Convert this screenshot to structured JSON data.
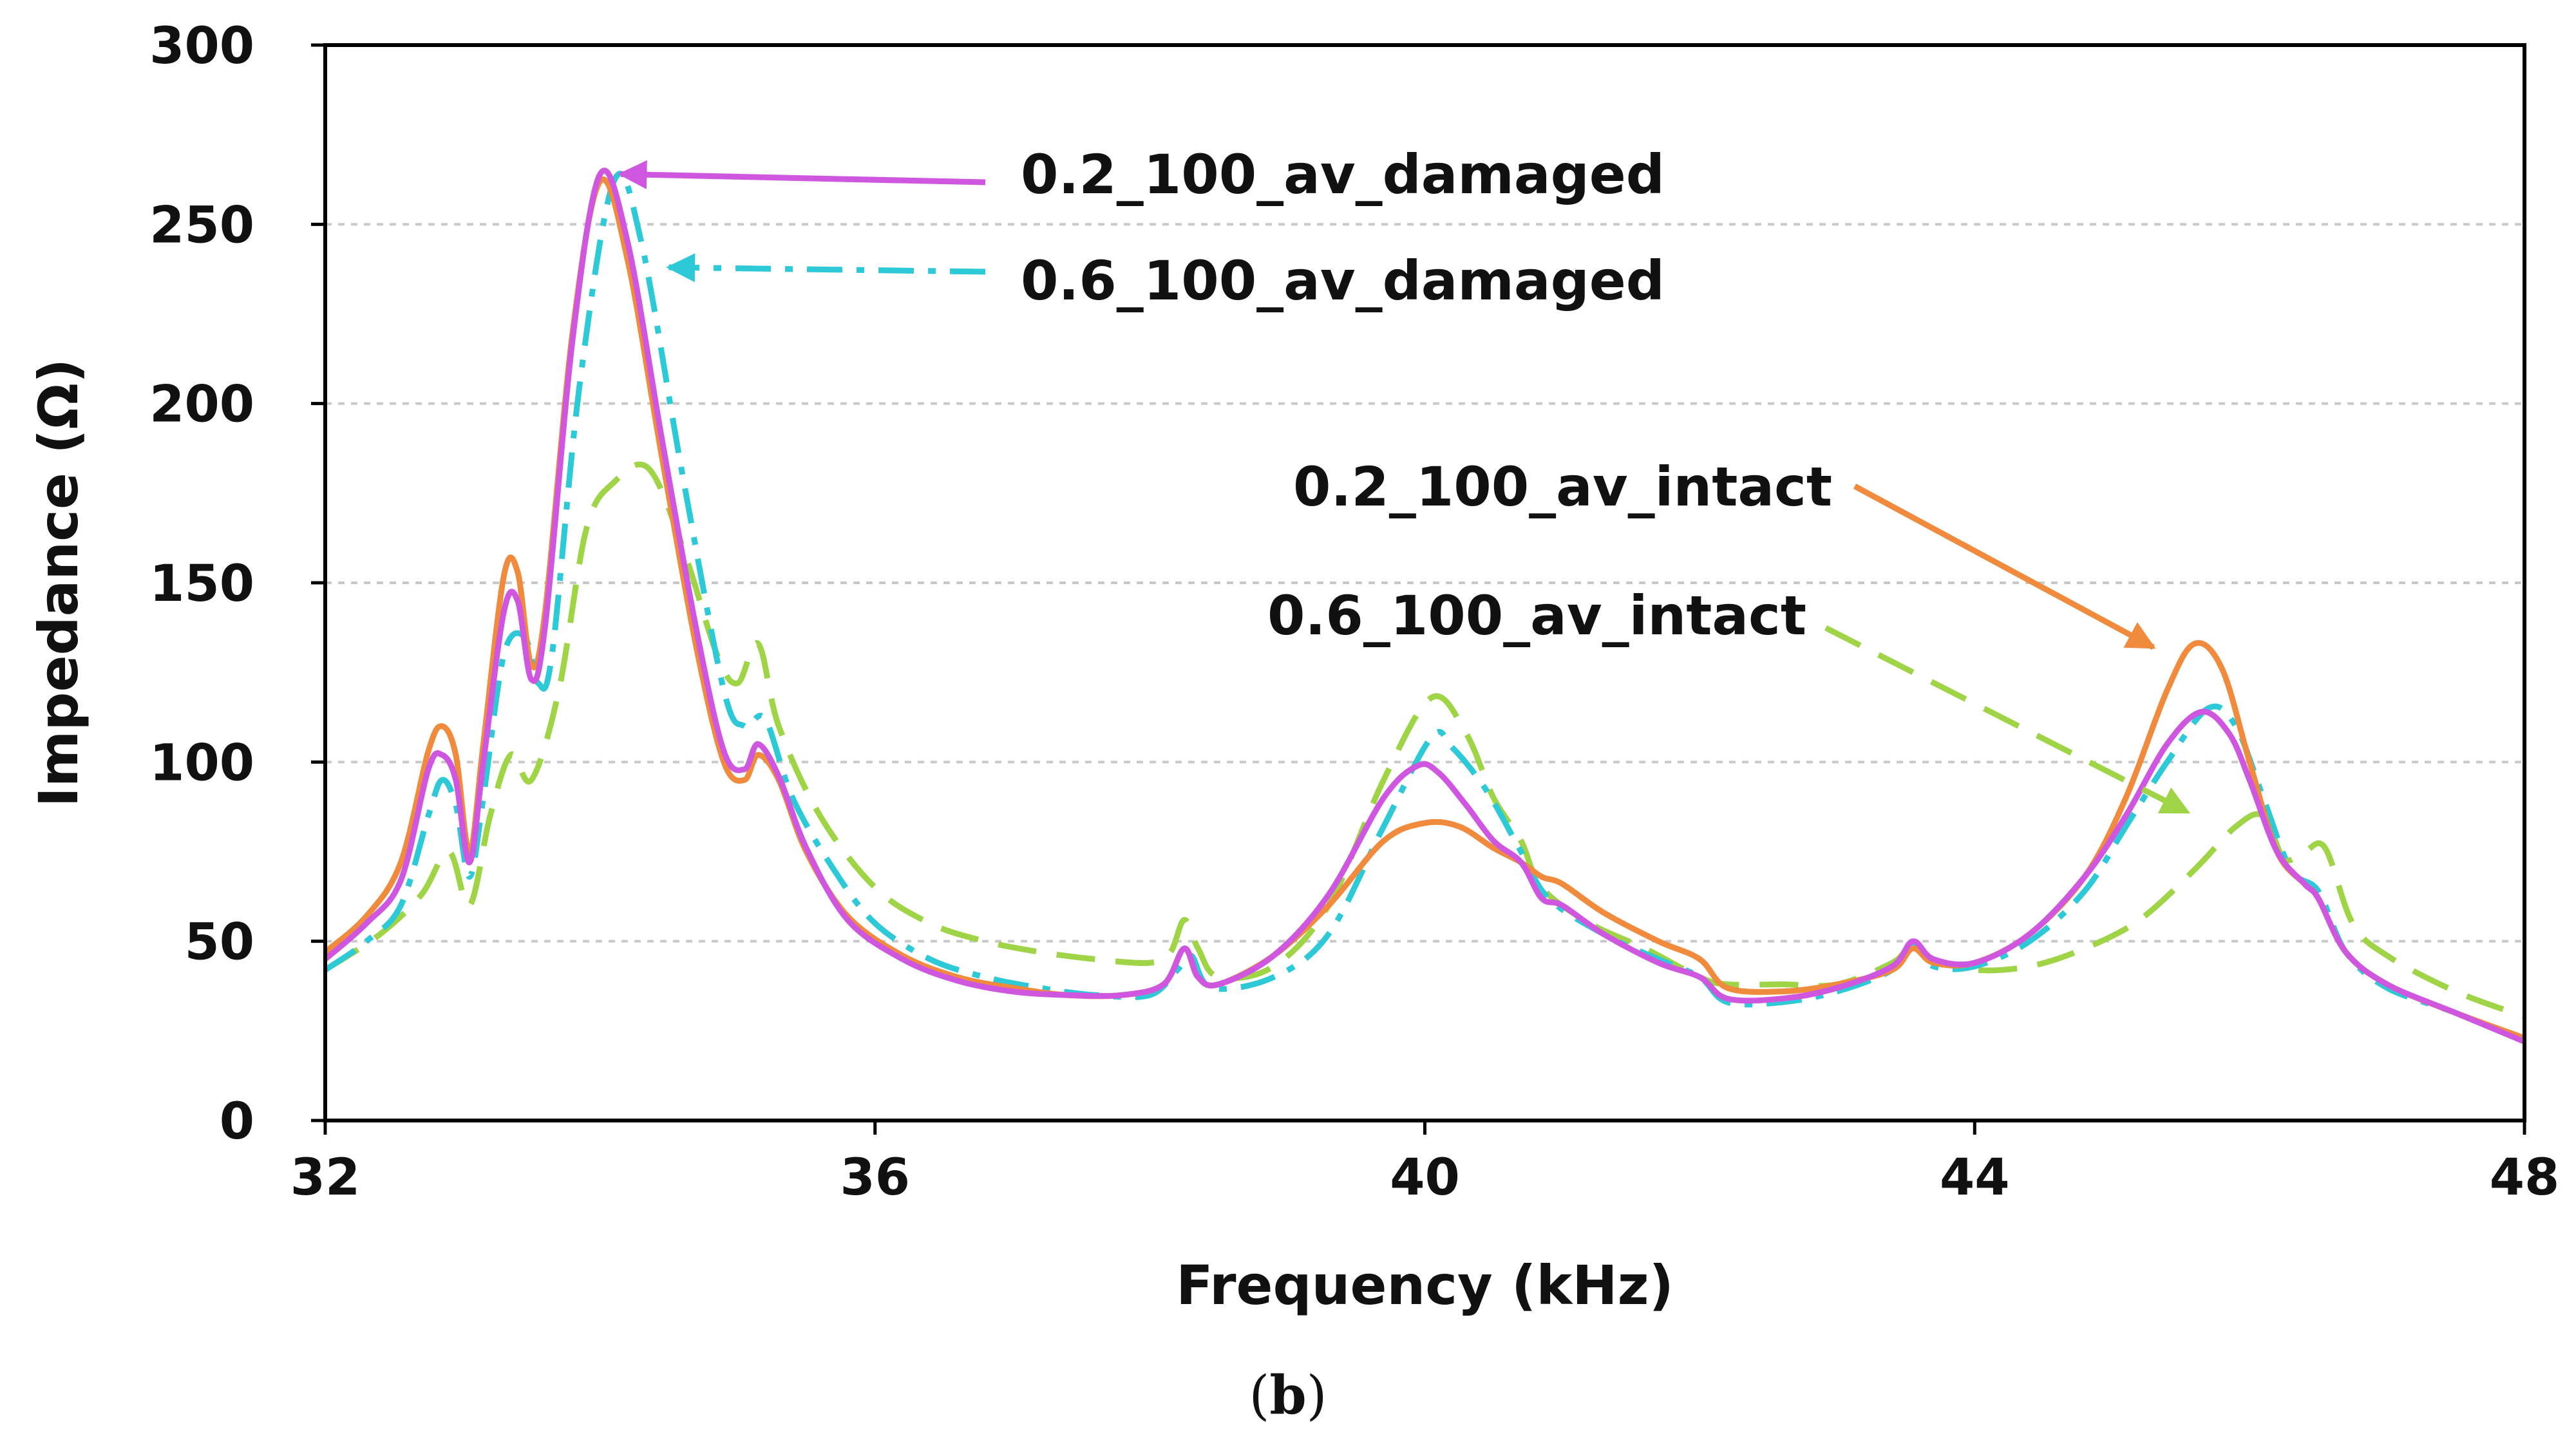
{
  "chart_data": {
    "type": "line",
    "title": "",
    "xlabel": "Frequency (kHz)",
    "ylabel": "Impedance (Ω)",
    "xlim": [
      32,
      48
    ],
    "ylim": [
      0,
      300
    ],
    "xticks": [
      32,
      36,
      40,
      44,
      48
    ],
    "yticks": [
      0,
      50,
      100,
      150,
      200,
      250,
      300
    ],
    "grid": "horizontal-dashed",
    "caption": {
      "open": "(",
      "letter": "b",
      "close": ")"
    },
    "series": [
      {
        "name": "0.2_100_av_intact",
        "color": "#F08A3C",
        "dash": "solid",
        "x": [
          32.0,
          32.3,
          32.55,
          32.75,
          32.85,
          32.95,
          33.05,
          33.15,
          33.3,
          33.4,
          33.5,
          33.6,
          33.8,
          34.0,
          34.2,
          34.45,
          34.7,
          34.9,
          35.05,
          35.15,
          35.3,
          35.5,
          35.8,
          36.2,
          36.6,
          37.0,
          37.4,
          37.8,
          38.1,
          38.25,
          38.35,
          38.5,
          38.9,
          39.3,
          39.7,
          40.0,
          40.25,
          40.5,
          40.7,
          40.85,
          41.0,
          41.3,
          41.7,
          42.0,
          42.2,
          42.6,
          43.0,
          43.4,
          43.55,
          43.7,
          44.0,
          44.4,
          44.8,
          45.1,
          45.4,
          45.6,
          45.8,
          46.0,
          46.2,
          46.4,
          46.5,
          46.7,
          47.0,
          47.5,
          48.0
        ],
        "y": [
          47,
          57,
          72,
          103,
          110,
          102,
          75,
          105,
          152,
          153,
          127,
          142,
          220,
          262,
          240,
          185,
          132,
          100,
          95,
          102,
          95,
          75,
          57,
          46,
          40,
          37,
          35,
          35,
          38,
          48,
          40,
          38,
          46,
          60,
          78,
          83,
          82,
          76,
          72,
          68,
          66,
          58,
          50,
          45,
          37,
          36,
          38,
          42,
          48,
          44,
          44,
          52,
          68,
          90,
          120,
          133,
          126,
          100,
          75,
          66,
          62,
          47,
          38,
          30,
          23
        ]
      },
      {
        "name": "0.2_100_av_damaged",
        "color": "#CF57E0",
        "dash": "solid",
        "x": [
          32.0,
          32.3,
          32.55,
          32.75,
          32.85,
          32.95,
          33.05,
          33.15,
          33.3,
          33.4,
          33.5,
          33.6,
          33.8,
          34.0,
          34.2,
          34.45,
          34.7,
          34.9,
          35.05,
          35.15,
          35.3,
          35.5,
          35.8,
          36.2,
          36.6,
          37.0,
          37.4,
          37.8,
          38.1,
          38.25,
          38.35,
          38.5,
          38.9,
          39.3,
          39.7,
          39.95,
          40.1,
          40.3,
          40.5,
          40.7,
          40.85,
          41.0,
          41.3,
          41.7,
          42.0,
          42.2,
          42.6,
          43.0,
          43.4,
          43.55,
          43.7,
          44.0,
          44.4,
          44.8,
          45.1,
          45.4,
          45.65,
          45.85,
          46.0,
          46.2,
          46.4,
          46.5,
          46.7,
          47.0,
          47.5,
          48.0
        ],
        "y": [
          45,
          55,
          67,
          98,
          102,
          95,
          72,
          100,
          142,
          145,
          123,
          138,
          218,
          264,
          245,
          190,
          137,
          103,
          98,
          105,
          96,
          76,
          56,
          45,
          39,
          36,
          35,
          35,
          38,
          48,
          40,
          38,
          46,
          63,
          90,
          99,
          97,
          88,
          78,
          72,
          62,
          60,
          52,
          44,
          40,
          34,
          34,
          37,
          43,
          50,
          45,
          44,
          52,
          68,
          85,
          105,
          114,
          108,
          95,
          75,
          66,
          62,
          47,
          38,
          30,
          22
        ]
      },
      {
        "name": "0.6_100_av_damaged",
        "color": "#2EC9D6",
        "dash": "dashdot",
        "x": [
          32.0,
          32.3,
          32.55,
          32.75,
          32.85,
          32.95,
          33.05,
          33.15,
          33.3,
          33.45,
          33.55,
          33.65,
          33.85,
          34.1,
          34.3,
          34.6,
          34.9,
          35.05,
          35.2,
          35.4,
          35.7,
          36.0,
          36.4,
          36.8,
          37.2,
          37.6,
          38.0,
          38.2,
          38.3,
          38.45,
          38.9,
          39.3,
          39.7,
          40.05,
          40.2,
          40.45,
          40.7,
          40.9,
          41.3,
          41.7,
          42.0,
          42.2,
          42.6,
          43.0,
          43.4,
          43.55,
          43.7,
          44.0,
          44.4,
          44.8,
          45.1,
          45.4,
          45.7,
          45.9,
          46.1,
          46.3,
          46.5,
          46.7,
          47.0,
          47.5,
          48.0
        ],
        "y": [
          42,
          50,
          60,
          85,
          95,
          88,
          68,
          90,
          130,
          135,
          122,
          130,
          205,
          262,
          245,
          180,
          120,
          110,
          112,
          90,
          70,
          55,
          45,
          40,
          37,
          35,
          35,
          42,
          46,
          37,
          40,
          52,
          82,
          107,
          104,
          92,
          75,
          62,
          52,
          45,
          40,
          33,
          33,
          36,
          42,
          49,
          43,
          43,
          50,
          64,
          82,
          100,
          115,
          110,
          90,
          70,
          64,
          47,
          37,
          30,
          22
        ]
      },
      {
        "name": "0.6_100_av_intact",
        "color": "#9ED445",
        "dash": "dashed",
        "x": [
          32.0,
          32.4,
          32.7,
          32.9,
          33.05,
          33.2,
          33.35,
          33.5,
          33.7,
          33.9,
          34.1,
          34.35,
          34.6,
          34.85,
          35.0,
          35.15,
          35.3,
          35.6,
          36.0,
          36.4,
          36.8,
          37.2,
          37.6,
          38.0,
          38.15,
          38.25,
          38.35,
          38.5,
          38.9,
          39.3,
          39.7,
          40.05,
          40.3,
          40.5,
          40.7,
          40.85,
          41.2,
          41.6,
          42.0,
          42.2,
          42.6,
          43.0,
          43.4,
          43.55,
          43.7,
          44.0,
          44.4,
          44.8,
          45.2,
          45.6,
          45.9,
          46.1,
          46.25,
          46.4,
          46.55,
          46.75,
          47.0,
          47.5,
          48.0
        ],
        "y": [
          42,
          52,
          63,
          75,
          60,
          85,
          102,
          95,
          120,
          165,
          178,
          182,
          160,
          130,
          122,
          133,
          110,
          85,
          65,
          55,
          50,
          47,
          45,
          44,
          47,
          56,
          48,
          40,
          43,
          60,
          95,
          118,
          108,
          90,
          78,
          65,
          55,
          48,
          40,
          38,
          38,
          38,
          44,
          49,
          45,
          42,
          43,
          48,
          56,
          70,
          82,
          85,
          73,
          75,
          76,
          55,
          46,
          36,
          29
        ]
      }
    ],
    "annotations": [
      {
        "text": "0.2_100_av_damaged",
        "series": "0.2_100_av_damaged",
        "point": [
          34.15,
          264
        ]
      },
      {
        "text": "0.6_100_av_damaged",
        "series": "0.6_100_av_damaged",
        "point": [
          34.5,
          238
        ]
      },
      {
        "text": "0.2_100_av_intact",
        "series": "0.2_100_av_intact",
        "point": [
          45.3,
          132
        ]
      },
      {
        "text": "0.6_100_av_intact",
        "series": "0.6_100_av_intact",
        "point": [
          45.55,
          86
        ]
      }
    ]
  }
}
